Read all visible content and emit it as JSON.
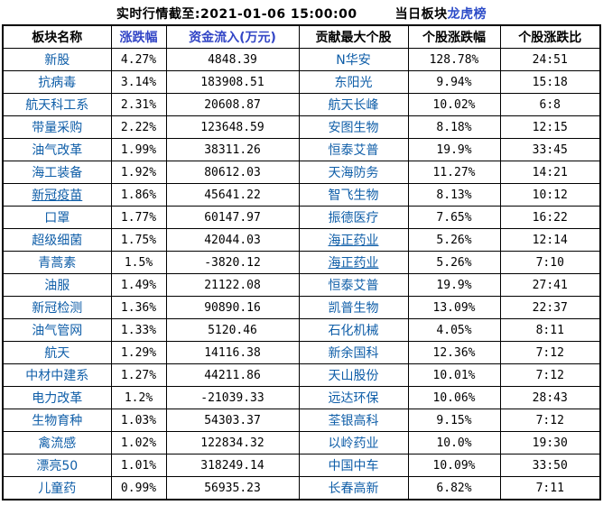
{
  "title": {
    "timestamp_label": "实时行情截至:2021-01-06 15:00:00",
    "board_label": "当日板块",
    "link_label": "龙虎榜"
  },
  "colors": {
    "background": "#ffffff",
    "border": "#000000",
    "text": "#000000",
    "name_blue": "#0f5ea8",
    "header_blue": "#3346c6",
    "link_blue": "#2d4cc8"
  },
  "table": {
    "columns": [
      {
        "label": "板块名称",
        "style": "black"
      },
      {
        "label": "涨跌幅",
        "style": "blue"
      },
      {
        "label": "资金流入(万元)",
        "style": "blue"
      },
      {
        "label": "贡献最大个股",
        "style": "black"
      },
      {
        "label": "个股涨跌幅",
        "style": "black"
      },
      {
        "label": "个股涨跌比",
        "style": "black"
      }
    ],
    "rows": [
      {
        "sector": "新股",
        "sector_underline": false,
        "change": "4.27%",
        "inflow": "4848.39",
        "stock": "N华安",
        "stock_underline": false,
        "stock_change": "128.78%",
        "ratio": "24:51"
      },
      {
        "sector": "抗病毒",
        "sector_underline": false,
        "change": "3.14%",
        "inflow": "183908.51",
        "stock": "东阳光",
        "stock_underline": false,
        "stock_change": "9.94%",
        "ratio": "15:18"
      },
      {
        "sector": "航天科工系",
        "sector_underline": false,
        "change": "2.31%",
        "inflow": "20608.87",
        "stock": "航天长峰",
        "stock_underline": false,
        "stock_change": "10.02%",
        "ratio": "6:8"
      },
      {
        "sector": "带量采购",
        "sector_underline": false,
        "change": "2.22%",
        "inflow": "123648.59",
        "stock": "安图生物",
        "stock_underline": false,
        "stock_change": "8.18%",
        "ratio": "12:15"
      },
      {
        "sector": "油气改革",
        "sector_underline": false,
        "change": "1.99%",
        "inflow": "38311.26",
        "stock": "恒泰艾普",
        "stock_underline": false,
        "stock_change": "19.9%",
        "ratio": "33:45"
      },
      {
        "sector": "海工装备",
        "sector_underline": false,
        "change": "1.92%",
        "inflow": "80612.03",
        "stock": "天海防务",
        "stock_underline": false,
        "stock_change": "11.27%",
        "ratio": "14:21"
      },
      {
        "sector": "新冠疫苗",
        "sector_underline": true,
        "change": "1.86%",
        "inflow": "45641.22",
        "stock": "智飞生物",
        "stock_underline": false,
        "stock_change": "8.13%",
        "ratio": "10:12"
      },
      {
        "sector": "口罩",
        "sector_underline": false,
        "change": "1.77%",
        "inflow": "60147.97",
        "stock": "振德医疗",
        "stock_underline": false,
        "stock_change": "7.65%",
        "ratio": "16:22"
      },
      {
        "sector": "超级细菌",
        "sector_underline": false,
        "change": "1.75%",
        "inflow": "42044.03",
        "stock": "海正药业",
        "stock_underline": true,
        "stock_change": "5.26%",
        "ratio": "12:14"
      },
      {
        "sector": "青蒿素",
        "sector_underline": false,
        "change": "1.5%",
        "inflow": "-3820.12",
        "stock": "海正药业",
        "stock_underline": true,
        "stock_change": "5.26%",
        "ratio": "7:10"
      },
      {
        "sector": "油服",
        "sector_underline": false,
        "change": "1.49%",
        "inflow": "21122.08",
        "stock": "恒泰艾普",
        "stock_underline": false,
        "stock_change": "19.9%",
        "ratio": "27:41"
      },
      {
        "sector": "新冠检测",
        "sector_underline": false,
        "change": "1.36%",
        "inflow": "90890.16",
        "stock": "凯普生物",
        "stock_underline": false,
        "stock_change": "13.09%",
        "ratio": "22:37"
      },
      {
        "sector": "油气管网",
        "sector_underline": false,
        "change": "1.33%",
        "inflow": "5120.46",
        "stock": "石化机械",
        "stock_underline": false,
        "stock_change": "4.05%",
        "ratio": "8:11"
      },
      {
        "sector": "航天",
        "sector_underline": false,
        "change": "1.29%",
        "inflow": "14116.38",
        "stock": "新余国科",
        "stock_underline": false,
        "stock_change": "12.36%",
        "ratio": "7:12"
      },
      {
        "sector": "中材中建系",
        "sector_underline": false,
        "change": "1.27%",
        "inflow": "44211.86",
        "stock": "天山股份",
        "stock_underline": false,
        "stock_change": "10.01%",
        "ratio": "7:12"
      },
      {
        "sector": "电力改革",
        "sector_underline": false,
        "change": "1.2%",
        "inflow": "-21039.33",
        "stock": "远达环保",
        "stock_underline": false,
        "stock_change": "10.06%",
        "ratio": "28:43"
      },
      {
        "sector": "生物育种",
        "sector_underline": false,
        "change": "1.03%",
        "inflow": "54303.37",
        "stock": "荃银高科",
        "stock_underline": false,
        "stock_change": "9.15%",
        "ratio": "7:12"
      },
      {
        "sector": "禽流感",
        "sector_underline": false,
        "change": "1.02%",
        "inflow": "122834.32",
        "stock": "以岭药业",
        "stock_underline": false,
        "stock_change": "10.0%",
        "ratio": "19:30"
      },
      {
        "sector": "漂亮50",
        "sector_underline": false,
        "change": "1.01%",
        "inflow": "318249.14",
        "stock": "中国中车",
        "stock_underline": false,
        "stock_change": "10.09%",
        "ratio": "33:50"
      },
      {
        "sector": "儿童药",
        "sector_underline": false,
        "change": "0.99%",
        "inflow": "56935.23",
        "stock": "长春高新",
        "stock_underline": false,
        "stock_change": "6.82%",
        "ratio": "7:11"
      }
    ]
  }
}
